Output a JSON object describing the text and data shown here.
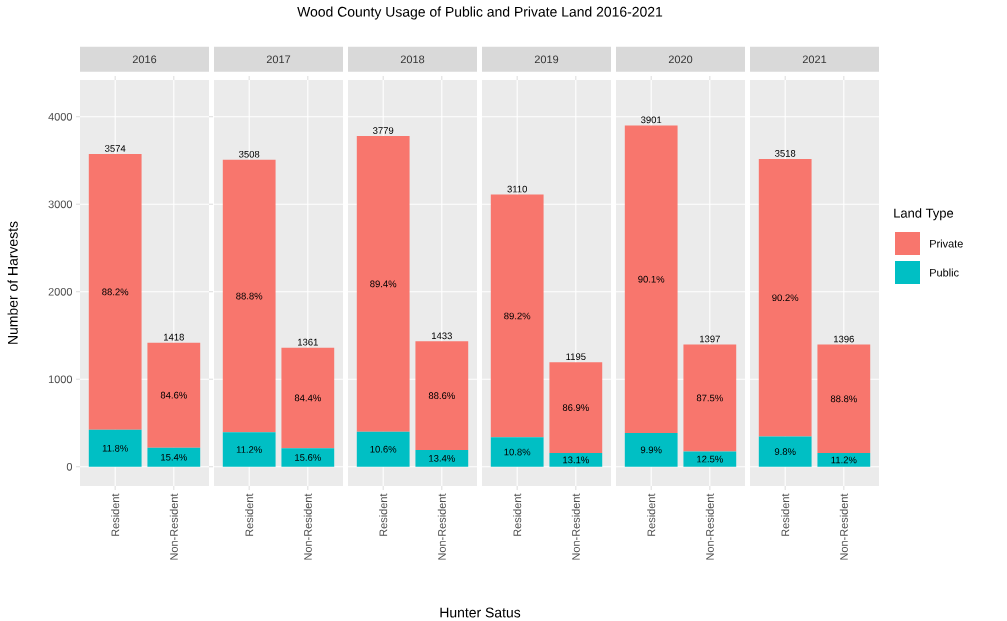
{
  "chart_data": [
    {
      "type": "bar",
      "subtitle": "2016",
      "ylabel": "Number of Harvests",
      "categories": [
        "Resident",
        "Non-Resident"
      ],
      "stacked": true,
      "ylim": [
        -220,
        4420
      ],
      "yticks": [
        0,
        1000,
        2000,
        3000,
        4000
      ],
      "grid": true,
      "series": [
        {
          "color": "#00bfc4",
          "values": [
            422,
            218
          ]
        },
        {
          "color": "#f8766d",
          "values": [
            3152,
            1200
          ]
        }
      ],
      "totals": [
        "3574",
        "1418"
      ],
      "annotations": [
        "11.8%",
        "15.4%",
        "88.2%",
        "84.6%"
      ]
    },
    {
      "type": "bar",
      "subtitle": "2017",
      "categories": [
        "Resident",
        "Non-Resident"
      ],
      "stacked": true,
      "ylim": [
        -220,
        4420
      ],
      "yticks": [
        0,
        1000,
        2000,
        3000,
        4000
      ],
      "grid": true,
      "tick_labels": "x",
      "series": [
        {
          "color": "#00bfc4",
          "values": [
            393,
            212
          ]
        },
        {
          "color": "#f8766d",
          "values": [
            3115,
            1149
          ]
        }
      ],
      "totals": [
        "3508",
        "1361"
      ],
      "annotations": [
        "11.2%",
        "15.6%",
        "88.8%",
        "84.4%"
      ]
    },
    {
      "type": "bar",
      "subtitle": "2018",
      "categories": [
        "Resident",
        "Non-Resident"
      ],
      "stacked": true,
      "ylim": [
        -220,
        4420
      ],
      "yticks": [
        0,
        1000,
        2000,
        3000,
        4000
      ],
      "grid": true,
      "tick_labels": "x",
      "series": [
        {
          "color": "#00bfc4",
          "values": [
            401,
            192
          ]
        },
        {
          "color": "#f8766d",
          "values": [
            3378,
            1241
          ]
        }
      ],
      "totals": [
        "3779",
        "1433"
      ],
      "annotations": [
        "10.6%",
        "13.4%",
        "89.4%",
        "88.6%"
      ]
    },
    {
      "type": "bar",
      "title": "Wood County Usage of Public and Private Land 2016-2021",
      "subtitle": "2019",
      "xlabel": "Hunter Satus",
      "categories": [
        "Resident",
        "Non-Resident"
      ],
      "stacked": true,
      "ylim": [
        -220,
        4420
      ],
      "yticks": [
        0,
        1000,
        2000,
        3000,
        4000
      ],
      "grid": true,
      "tick_labels": "x",
      "series": [
        {
          "color": "#00bfc4",
          "values": [
            336,
            157
          ]
        },
        {
          "color": "#f8766d",
          "values": [
            2774,
            1038
          ]
        }
      ],
      "totals": [
        "3110",
        "1195"
      ],
      "annotations": [
        "10.8%",
        "13.1%",
        "89.2%",
        "86.9%"
      ]
    },
    {
      "type": "bar",
      "subtitle": "2020",
      "categories": [
        "Resident",
        "Non-Resident"
      ],
      "stacked": true,
      "ylim": [
        -220,
        4420
      ],
      "yticks": [
        0,
        1000,
        2000,
        3000,
        4000
      ],
      "grid": true,
      "tick_labels": "x",
      "series": [
        {
          "color": "#00bfc4",
          "values": [
            386,
            175
          ]
        },
        {
          "color": "#f8766d",
          "values": [
            3515,
            1222
          ]
        }
      ],
      "totals": [
        "3901",
        "1397"
      ],
      "annotations": [
        "9.9%",
        "12.5%",
        "90.1%",
        "87.5%"
      ]
    },
    {
      "type": "bar",
      "subtitle": "2021",
      "legend_title": "Land Type",
      "legend": "right",
      "categories": [
        "Resident",
        "Non-Resident"
      ],
      "stacked": true,
      "ylim": [
        -220,
        4420
      ],
      "yticks": [
        0,
        1000,
        2000,
        3000,
        4000
      ],
      "grid": true,
      "tick_labels": "x",
      "series": [
        {
          "name": "Public",
          "color": "#00bfc4",
          "values": [
            345,
            156
          ]
        },
        {
          "name": "Private",
          "color": "#f8766d",
          "values": [
            3173,
            1240
          ]
        }
      ],
      "totals": [
        "3518",
        "1396"
      ],
      "annotations": [
        "9.8%",
        "11.2%",
        "90.2%",
        "88.8%"
      ]
    }
  ]
}
